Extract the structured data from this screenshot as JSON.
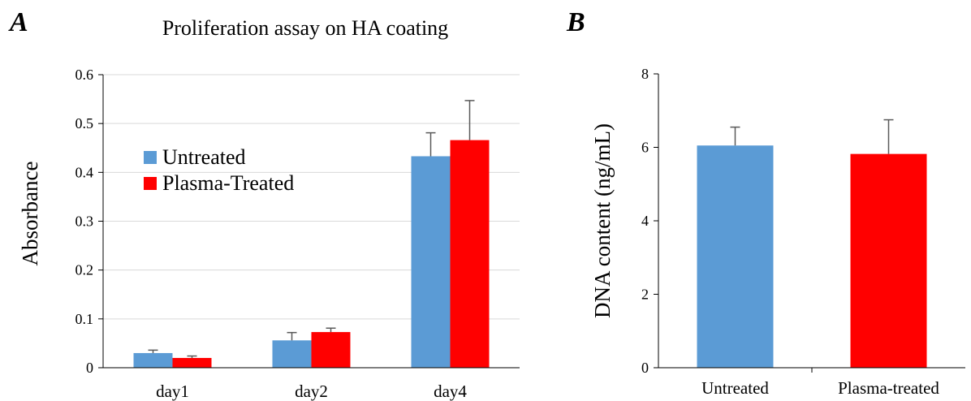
{
  "colors": {
    "untreated": "#5b9bd5",
    "plasma": "#ff0000",
    "axis": "#000000",
    "grid": "#d9d9d9",
    "errorbar": "#595959"
  },
  "chart_data": [
    {
      "panel": "A",
      "type": "bar",
      "title": "Proliferation assay on HA coating",
      "xlabel": "",
      "ylabel": "Absorbance",
      "ylim": [
        0,
        0.6
      ],
      "yticks": [
        "0",
        "0.1",
        "0.2",
        "0.3",
        "0.4",
        "0.5",
        "0.6"
      ],
      "categories": [
        "day1",
        "day2",
        "day4"
      ],
      "grid": true,
      "legend_position": "upper-left",
      "series": [
        {
          "name": "Untreated",
          "values": [
            0.03,
            0.056,
            0.433
          ],
          "errors": [
            0.006,
            0.016,
            0.048
          ]
        },
        {
          "name": "Plasma-Treated",
          "values": [
            0.02,
            0.073,
            0.466
          ],
          "errors": [
            0.004,
            0.008,
            0.081
          ]
        }
      ]
    },
    {
      "panel": "B",
      "type": "bar",
      "title": "",
      "xlabel": "",
      "ylabel": "DNA content (ng/mL)",
      "ylim": [
        0,
        8
      ],
      "yticks": [
        "0",
        "2",
        "4",
        "6",
        "8"
      ],
      "categories": [
        "Untreated",
        "Plasma-treated"
      ],
      "grid": false,
      "values": [
        6.05,
        5.82
      ],
      "errors": [
        0.5,
        0.93
      ]
    }
  ]
}
